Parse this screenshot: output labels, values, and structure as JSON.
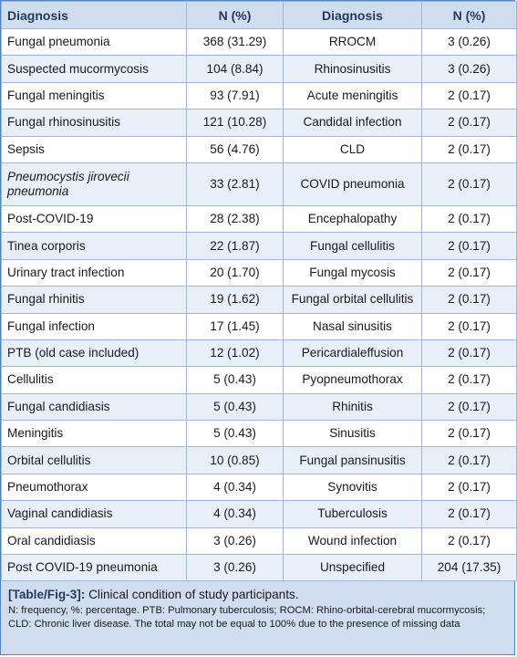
{
  "table": {
    "headers": [
      "Diagnosis",
      "N (%)",
      "Diagnosis",
      "N (%)"
    ],
    "rows": [
      [
        "Fungal pneumonia",
        "368 (31.29)",
        "RROCM",
        "3 (0.26)"
      ],
      [
        "Suspected mucormycosis",
        "104 (8.84)",
        "Rhinosinusitis",
        "3 (0.26)"
      ],
      [
        "Fungal meningitis",
        "93 (7.91)",
        "Acute meningitis",
        "2 (0.17)"
      ],
      [
        "Fungal rhinosinusitis",
        "121 (10.28)",
        "Candidal infection",
        "2 (0.17)"
      ],
      [
        "Sepsis",
        "56 (4.76)",
        "CLD",
        "2 (0.17)"
      ],
      [
        "Pneumocystis jirovecii pneumonia",
        "33 (2.81)",
        "COVID pneumonia",
        "2 (0.17)"
      ],
      [
        "Post-COVID-19",
        "28 (2.38)",
        "Encephalopathy",
        "2 (0.17)"
      ],
      [
        "Tinea corporis",
        "22 (1.87)",
        "Fungal cellulitis",
        "2 (0.17)"
      ],
      [
        "Urinary tract infection",
        "20 (1.70)",
        "Fungal mycosis",
        "2 (0.17)"
      ],
      [
        "Fungal rhinitis",
        "19 (1.62)",
        "Fungal orbital cellulitis",
        "2 (0.17)"
      ],
      [
        "Fungal infection",
        "17 (1.45)",
        "Nasal sinusitis",
        "2 (0.17)"
      ],
      [
        "PTB (old case included)",
        "12 (1.02)",
        "Pericardialeffusion",
        "2 (0.17)"
      ],
      [
        "Cellulitis",
        "5 (0.43)",
        "Pyopneumothorax",
        "2 (0.17)"
      ],
      [
        "Fungal candidiasis",
        "5 (0.43)",
        "Rhinitis",
        "2 (0.17)"
      ],
      [
        "Meningitis",
        "5 (0.43)",
        "Sinusitis",
        "2 (0.17)"
      ],
      [
        "Orbital cellulitis",
        "10 (0.85)",
        "Fungal pansinusitis",
        "2 (0.17)"
      ],
      [
        "Pneumothorax",
        "4 (0.34)",
        "Synovitis",
        "2 (0.17)"
      ],
      [
        "Vaginal candidiasis",
        "4 (0.34)",
        "Tuberculosis",
        "2 (0.17)"
      ],
      [
        "Oral candidiasis",
        "3 (0.26)",
        "Wound infection",
        "2 (0.17)"
      ],
      [
        "Post COVID-19 pneumonia",
        "3 (0.26)",
        "Unspecified",
        "204 (17.35)"
      ]
    ]
  },
  "caption": {
    "label": "[Table/Fig-3]:",
    "title": "Clinical condition of study participants.",
    "note": "N: frequency, %: percentage. PTB: Pulmonary tuberculosis; ROCM: Rhino-orbital-cerebral mucormycosis; CLD: Chronic liver disease. The total may not be equal to 100% due to the presence of missing data"
  }
}
